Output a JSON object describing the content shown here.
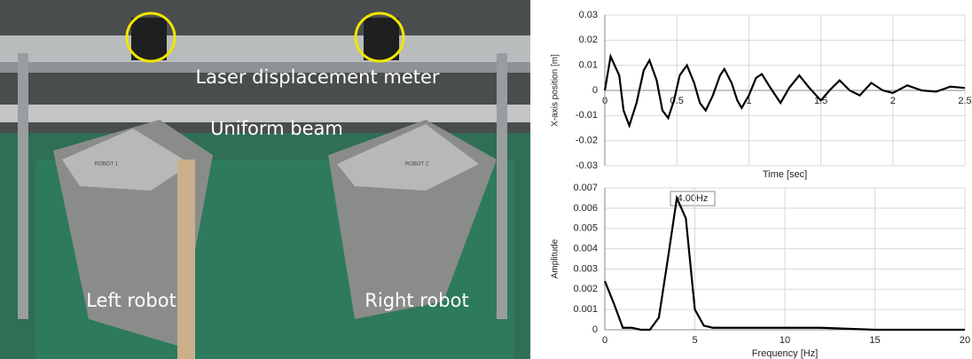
{
  "photo": {
    "labels": [
      "Laser displacement meter",
      "Uniform beam",
      "Left robot",
      "Right robot"
    ],
    "plates": [
      "ROBOT 1",
      "ROBOT 2"
    ]
  },
  "chart_data": [
    {
      "type": "line",
      "ylabel": "X-axis position [m]",
      "xlabel": "Time [sec]",
      "color": "#000000",
      "grid": true,
      "x": [
        0,
        0.04,
        0.1,
        0.13,
        0.17,
        0.22,
        0.27,
        0.31,
        0.36,
        0.4,
        0.44,
        0.48,
        0.52,
        0.57,
        0.62,
        0.66,
        0.7,
        0.75,
        0.8,
        0.83,
        0.88,
        0.92,
        0.95,
        1.0,
        1.05,
        1.09,
        1.15,
        1.22,
        1.28,
        1.35,
        1.42,
        1.5,
        1.56,
        1.63,
        1.7,
        1.77,
        1.85,
        1.93,
        2.0,
        2.1,
        2.2,
        2.3,
        2.4,
        2.5
      ],
      "values": [
        0,
        0.0135,
        0.006,
        -0.008,
        -0.014,
        -0.005,
        0.008,
        0.012,
        0.004,
        -0.008,
        -0.011,
        -0.004,
        0.006,
        0.01,
        0.003,
        -0.005,
        -0.008,
        -0.002,
        0.006,
        0.0085,
        0.003,
        -0.004,
        -0.007,
        -0.002,
        0.005,
        0.0065,
        0.001,
        -0.005,
        0.001,
        0.006,
        0.001,
        -0.004,
        0,
        0.004,
        0,
        -0.002,
        0.003,
        0,
        -0.001,
        0.002,
        0,
        -0.0005,
        0.0015,
        0.001
      ],
      "xlim": [
        0,
        2.5
      ],
      "xticks": [
        0,
        0.5,
        1,
        1.5,
        2,
        2.5
      ],
      "ylim": [
        -0.03,
        0.03
      ],
      "yticks": [
        -0.03,
        -0.02,
        -0.01,
        0,
        0.01,
        0.02,
        0.03
      ]
    },
    {
      "type": "line",
      "ylabel": "Amplitude",
      "xlabel": "Frequency [Hz]",
      "color": "#000000",
      "grid": true,
      "annotation": "4.00Hz",
      "x": [
        0,
        0.5,
        1,
        1.5,
        2,
        2.5,
        3,
        3.5,
        4,
        4.5,
        5,
        5.5,
        6,
        7,
        8,
        10,
        12,
        15,
        20
      ],
      "values": [
        0.0024,
        0.0013,
        0.0001,
        0.0001,
        0,
        0,
        0.0006,
        0.0035,
        0.0065,
        0.0055,
        0.001,
        0.0002,
        0.0001,
        0.0001,
        0.0001,
        0.0001,
        0.0001,
        0,
        0
      ],
      "xlim": [
        0,
        20
      ],
      "xticks": [
        0,
        5,
        10,
        15,
        20
      ],
      "ylim": [
        0,
        0.007
      ],
      "yticks": [
        0,
        0.001,
        0.002,
        0.003,
        0.004,
        0.005,
        0.006,
        0.007
      ]
    }
  ]
}
